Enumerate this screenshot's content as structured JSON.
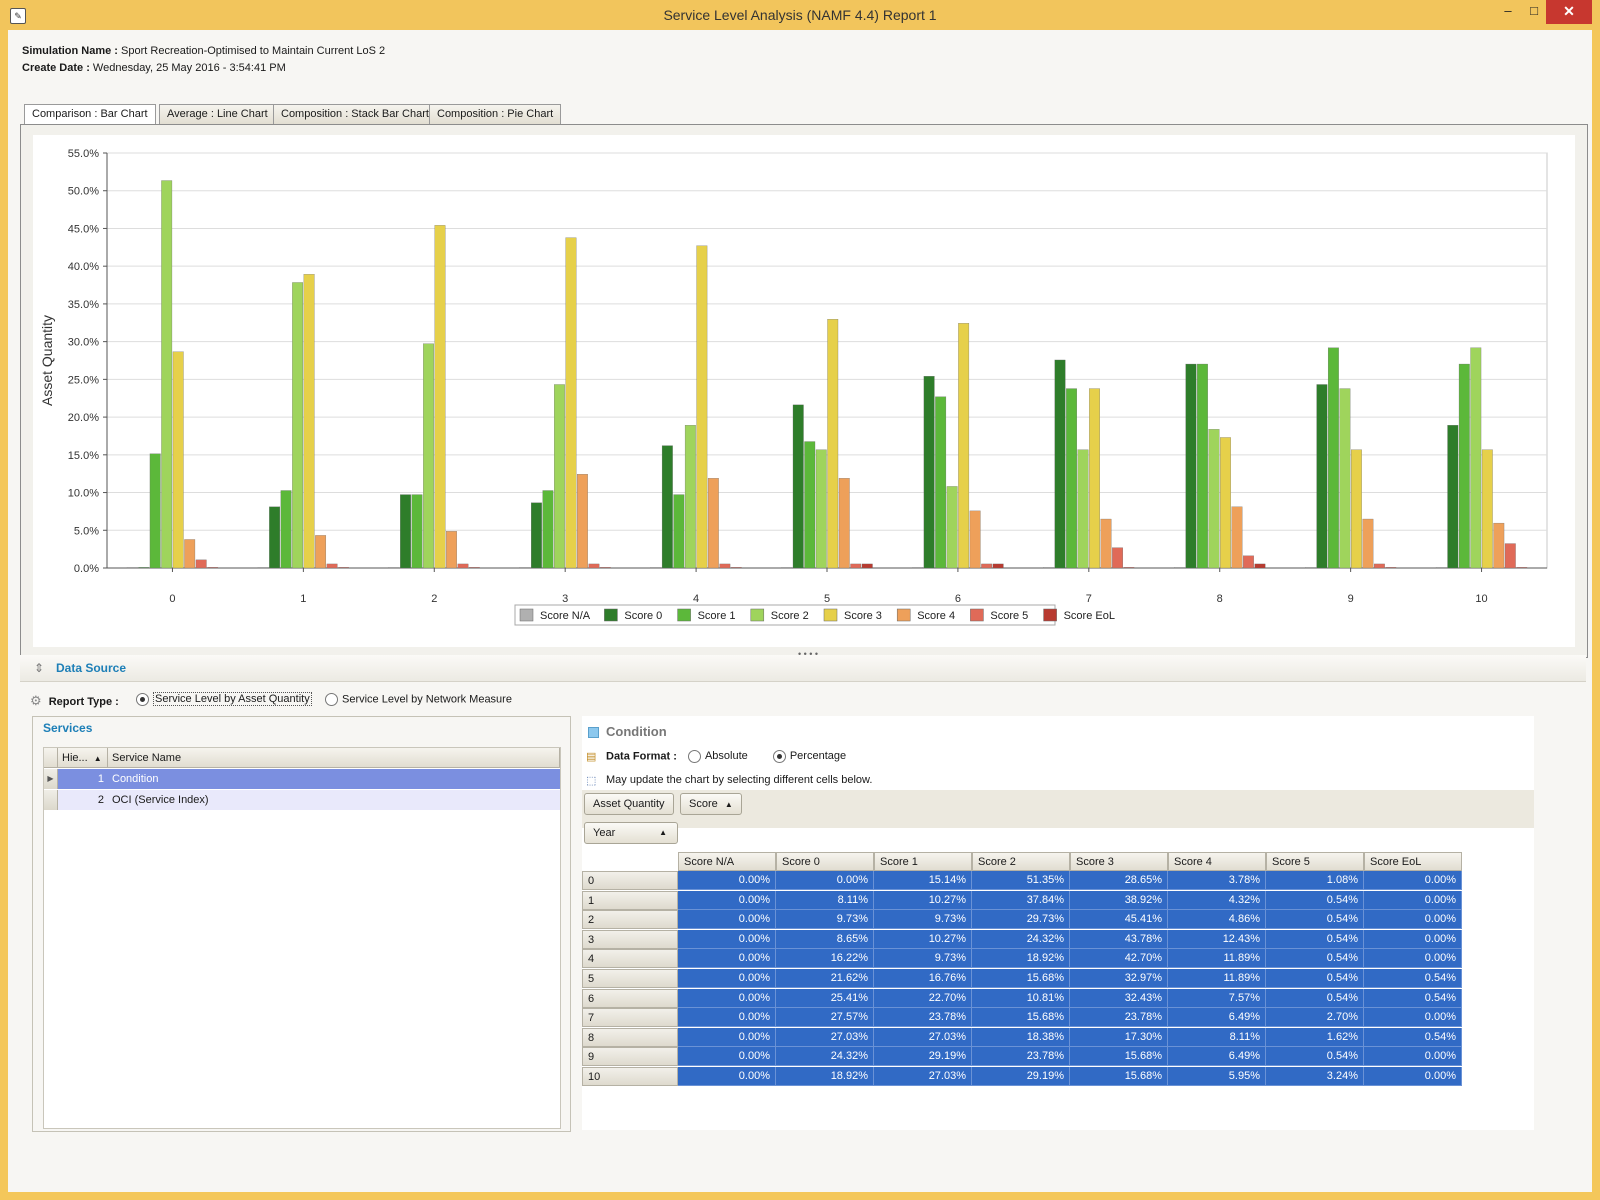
{
  "window": {
    "title": "Service Level Analysis (NAMF 4.4) Report 1",
    "minimize": "–",
    "maximize": "□",
    "close": "✕"
  },
  "info": {
    "sim_label": "Simulation Name :",
    "sim_value": "Sport  Recreation-Optimised to Maintain Current LoS 2",
    "date_label": "Create Date :",
    "date_value": "Wednesday, 25 May 2016 - 3:54:41 PM"
  },
  "tabs": [
    {
      "label": "Comparison : Bar Chart"
    },
    {
      "label": "Average : Line Chart"
    },
    {
      "label": "Composition : Stack Bar Chart"
    },
    {
      "label": "Composition : Pie Chart"
    }
  ],
  "chart_data": {
    "type": "bar",
    "ylabel": "Asset Quantity",
    "xlabel": "",
    "ylim": [
      0,
      55
    ],
    "ytick_labels": [
      "0.0%",
      "5.0%",
      "10.0%",
      "15.0%",
      "20.0%",
      "25.0%",
      "30.0%",
      "35.0%",
      "40.0%",
      "45.0%",
      "50.0%",
      "55.0%"
    ],
    "categories": [
      "0",
      "1",
      "2",
      "3",
      "4",
      "5",
      "6",
      "7",
      "8",
      "9",
      "10"
    ],
    "grid": true,
    "legend_position": "bottom",
    "series": [
      {
        "name": "Score N/A",
        "color": "#b0b0b0",
        "values": [
          0,
          0,
          0,
          0,
          0,
          0,
          0,
          0,
          0,
          0,
          0
        ]
      },
      {
        "name": "Score 0",
        "color": "#2e7d2a",
        "values": [
          0,
          8.11,
          9.73,
          8.65,
          16.22,
          21.62,
          25.41,
          27.57,
          27.03,
          24.32,
          18.92
        ]
      },
      {
        "name": "Score 1",
        "color": "#5cb83a",
        "values": [
          15.14,
          10.27,
          9.73,
          10.27,
          9.73,
          16.76,
          22.7,
          23.78,
          27.03,
          29.19,
          27.03
        ]
      },
      {
        "name": "Score 2",
        "color": "#9fd45c",
        "values": [
          51.35,
          37.84,
          29.73,
          24.32,
          18.92,
          15.68,
          10.81,
          15.68,
          18.38,
          23.78,
          29.19
        ]
      },
      {
        "name": "Score 3",
        "color": "#e6d04a",
        "values": [
          28.65,
          38.92,
          45.41,
          43.78,
          42.7,
          32.97,
          32.43,
          23.78,
          17.3,
          15.68,
          15.68
        ]
      },
      {
        "name": "Score 4",
        "color": "#eea05a",
        "values": [
          3.78,
          4.32,
          4.86,
          12.43,
          11.89,
          11.89,
          7.57,
          6.49,
          8.11,
          6.49,
          5.95
        ]
      },
      {
        "name": "Score 5",
        "color": "#e06a58",
        "values": [
          1.08,
          0.54,
          0.54,
          0.54,
          0.54,
          0.54,
          0.54,
          2.7,
          1.62,
          0.54,
          3.24
        ]
      },
      {
        "name": "Score EoL",
        "color": "#b83a30",
        "values": [
          0,
          0,
          0,
          0,
          0,
          0.54,
          0.54,
          0,
          0.54,
          0,
          0
        ]
      }
    ]
  },
  "data_source": {
    "title": "Data Source",
    "report_type_label": "Report Type :",
    "option1": "Service Level by Asset Quantity",
    "option2": "Service Level by Network Measure",
    "selected": "option1"
  },
  "services": {
    "title": "Services",
    "col1": "Hie...",
    "col2": "Service Name",
    "rows": [
      {
        "hier": "1",
        "name": "Condition"
      },
      {
        "hier": "2",
        "name": "OCI (Service Index)"
      }
    ]
  },
  "condition": {
    "title": "Condition",
    "data_format_label": "Data Format :",
    "absolute": "Absolute",
    "percentage": "Percentage",
    "selected_format": "Percentage",
    "hint": "May update the chart by selecting different cells below.",
    "pivot_buttons": [
      "Asset Quantity",
      "Score"
    ],
    "row_field": "Year",
    "columns": [
      "Score N/A",
      "Score 0",
      "Score 1",
      "Score 2",
      "Score 3",
      "Score 4",
      "Score 5",
      "Score EoL"
    ],
    "rows": [
      {
        "year": "0",
        "vals": [
          "0.00%",
          "0.00%",
          "15.14%",
          "51.35%",
          "28.65%",
          "3.78%",
          "1.08%",
          "0.00%"
        ]
      },
      {
        "year": "1",
        "vals": [
          "0.00%",
          "8.11%",
          "10.27%",
          "37.84%",
          "38.92%",
          "4.32%",
          "0.54%",
          "0.00%"
        ]
      },
      {
        "year": "2",
        "vals": [
          "0.00%",
          "9.73%",
          "9.73%",
          "29.73%",
          "45.41%",
          "4.86%",
          "0.54%",
          "0.00%"
        ]
      },
      {
        "year": "3",
        "vals": [
          "0.00%",
          "8.65%",
          "10.27%",
          "24.32%",
          "43.78%",
          "12.43%",
          "0.54%",
          "0.00%"
        ]
      },
      {
        "year": "4",
        "vals": [
          "0.00%",
          "16.22%",
          "9.73%",
          "18.92%",
          "42.70%",
          "11.89%",
          "0.54%",
          "0.00%"
        ]
      },
      {
        "year": "5",
        "vals": [
          "0.00%",
          "21.62%",
          "16.76%",
          "15.68%",
          "32.97%",
          "11.89%",
          "0.54%",
          "0.54%"
        ]
      },
      {
        "year": "6",
        "vals": [
          "0.00%",
          "25.41%",
          "22.70%",
          "10.81%",
          "32.43%",
          "7.57%",
          "0.54%",
          "0.54%"
        ]
      },
      {
        "year": "7",
        "vals": [
          "0.00%",
          "27.57%",
          "23.78%",
          "15.68%",
          "23.78%",
          "6.49%",
          "2.70%",
          "0.00%"
        ]
      },
      {
        "year": "8",
        "vals": [
          "0.00%",
          "27.03%",
          "27.03%",
          "18.38%",
          "17.30%",
          "8.11%",
          "1.62%",
          "0.54%"
        ]
      },
      {
        "year": "9",
        "vals": [
          "0.00%",
          "24.32%",
          "29.19%",
          "23.78%",
          "15.68%",
          "6.49%",
          "0.54%",
          "0.00%"
        ]
      },
      {
        "year": "10",
        "vals": [
          "0.00%",
          "18.92%",
          "27.03%",
          "29.19%",
          "15.68%",
          "5.95%",
          "3.24%",
          "0.00%"
        ]
      }
    ]
  }
}
